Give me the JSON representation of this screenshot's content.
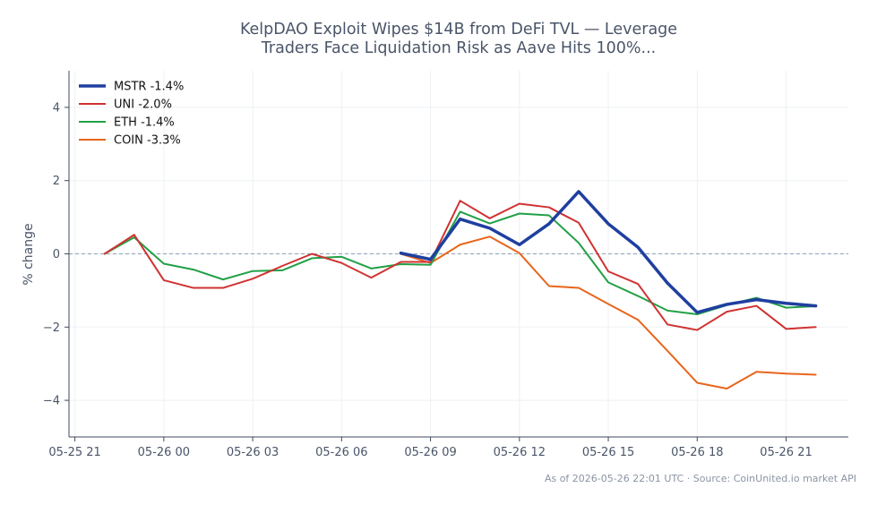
{
  "chart_data": {
    "type": "line",
    "title_lines": [
      "KelpDAO Exploit Wipes $14B from DeFi TVL — Leverage",
      "Traders Face Liquidation Risk as Aave Hits 100%..."
    ],
    "xlabel": "",
    "ylabel": "% change",
    "x_ticks": [
      "05-25 21",
      "05-26 00",
      "05-26 03",
      "05-26 06",
      "05-26 09",
      "05-26 12",
      "05-26 15",
      "05-26 18",
      "05-26 21"
    ],
    "y_ticks": [
      "4",
      "2",
      "0",
      "−2",
      "−4"
    ],
    "xlim": [
      -0.2,
      26.1
    ],
    "ylim": [
      -5,
      5
    ],
    "grid": true,
    "zero_line": true,
    "legend_position": "top-left",
    "footnote": "As of 2026-05-26 22:01 UTC · Source: CoinUnited.io market API",
    "series": [
      {
        "name": "MSTR -1.4%",
        "color": "#1f3fa0",
        "width": 3.5,
        "points": [
          [
            11,
            0.02
          ],
          [
            12,
            -0.15
          ],
          [
            13,
            0.95
          ],
          [
            14,
            0.7
          ],
          [
            15,
            0.25
          ],
          [
            16,
            0.82
          ],
          [
            17,
            1.7
          ],
          [
            18,
            0.82
          ],
          [
            19,
            0.18
          ],
          [
            20,
            -0.8
          ],
          [
            21,
            -1.6
          ],
          [
            22,
            -1.38
          ],
          [
            23,
            -1.25
          ],
          [
            24,
            -1.35
          ],
          [
            25,
            -1.42
          ]
        ]
      },
      {
        "name": "UNI -2.0%",
        "color": "#d03232",
        "width": 2,
        "points": [
          [
            1,
            0.0
          ],
          [
            2,
            0.52
          ],
          [
            3,
            -0.72
          ],
          [
            4,
            -0.93
          ],
          [
            5,
            -0.93
          ],
          [
            6,
            -0.68
          ],
          [
            7,
            -0.33
          ],
          [
            8,
            0.0
          ],
          [
            9,
            -0.25
          ],
          [
            10,
            -0.65
          ],
          [
            11,
            -0.22
          ],
          [
            12,
            -0.22
          ],
          [
            13,
            1.45
          ],
          [
            14,
            0.97
          ],
          [
            15,
            1.37
          ],
          [
            16,
            1.27
          ],
          [
            17,
            0.85
          ],
          [
            18,
            -0.48
          ],
          [
            19,
            -0.82
          ],
          [
            20,
            -1.93
          ],
          [
            21,
            -2.08
          ],
          [
            22,
            -1.58
          ],
          [
            23,
            -1.42
          ],
          [
            24,
            -2.05
          ],
          [
            25,
            -2.0
          ]
        ]
      },
      {
        "name": "ETH -1.4%",
        "color": "#22a047",
        "width": 2,
        "points": [
          [
            1,
            0.0
          ],
          [
            2,
            0.45
          ],
          [
            3,
            -0.27
          ],
          [
            4,
            -0.43
          ],
          [
            5,
            -0.7
          ],
          [
            6,
            -0.47
          ],
          [
            7,
            -0.45
          ],
          [
            8,
            -0.12
          ],
          [
            9,
            -0.08
          ],
          [
            10,
            -0.4
          ],
          [
            11,
            -0.28
          ],
          [
            12,
            -0.3
          ],
          [
            13,
            1.15
          ],
          [
            14,
            0.83
          ],
          [
            15,
            1.1
          ],
          [
            16,
            1.05
          ],
          [
            17,
            0.3
          ],
          [
            18,
            -0.78
          ],
          [
            19,
            -1.15
          ],
          [
            20,
            -1.55
          ],
          [
            21,
            -1.65
          ],
          [
            22,
            -1.4
          ],
          [
            23,
            -1.2
          ],
          [
            24,
            -1.47
          ],
          [
            25,
            -1.43
          ]
        ]
      },
      {
        "name": "COIN -3.3%",
        "color": "#e8651c",
        "width": 2,
        "points": [
          [
            11,
            0.0
          ],
          [
            12,
            -0.25
          ],
          [
            13,
            0.25
          ],
          [
            14,
            0.47
          ],
          [
            15,
            0.02
          ],
          [
            16,
            -0.88
          ],
          [
            17,
            -0.93
          ],
          [
            18,
            -1.37
          ],
          [
            19,
            -1.8
          ],
          [
            20,
            -2.65
          ],
          [
            21,
            -3.52
          ],
          [
            22,
            -3.68
          ],
          [
            23,
            -3.22
          ],
          [
            24,
            -3.27
          ],
          [
            25,
            -3.3
          ]
        ]
      }
    ]
  }
}
